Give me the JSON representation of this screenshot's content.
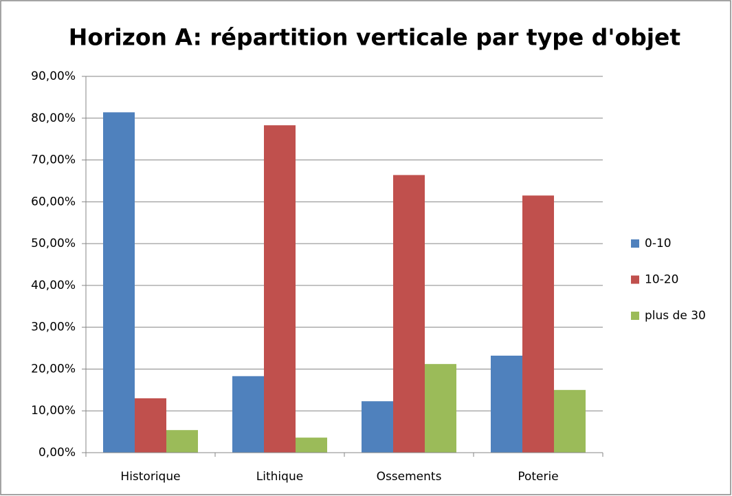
{
  "chart_data": {
    "type": "bar",
    "title": "Horizon A: répartition verticale par type d'objet",
    "categories": [
      "Historique",
      "Lithique",
      "Ossements",
      "Poterie"
    ],
    "series": [
      {
        "name": "0-10",
        "color": "#4f81bd",
        "values": [
          81.4,
          18.3,
          12.3,
          23.2
        ]
      },
      {
        "name": "10-20",
        "color": "#c0504d",
        "values": [
          13.0,
          78.3,
          66.4,
          61.5
        ]
      },
      {
        "name": "plus de 30",
        "color": "#9bbb59",
        "values": [
          5.4,
          3.6,
          21.2,
          15.0
        ]
      }
    ],
    "ylim": [
      0,
      90
    ],
    "yticks": [
      {
        "value": 0,
        "label": "0,00%"
      },
      {
        "value": 10,
        "label": "10,00%"
      },
      {
        "value": 20,
        "label": "20,00%"
      },
      {
        "value": 30,
        "label": "30,00%"
      },
      {
        "value": 40,
        "label": "40,00%"
      },
      {
        "value": 50,
        "label": "50,00%"
      },
      {
        "value": 60,
        "label": "60,00%"
      },
      {
        "value": 70,
        "label": "70,00%"
      },
      {
        "value": 80,
        "label": "80,00%"
      },
      {
        "value": 90,
        "label": "90,00%"
      }
    ],
    "grid": true,
    "legend": "right"
  }
}
